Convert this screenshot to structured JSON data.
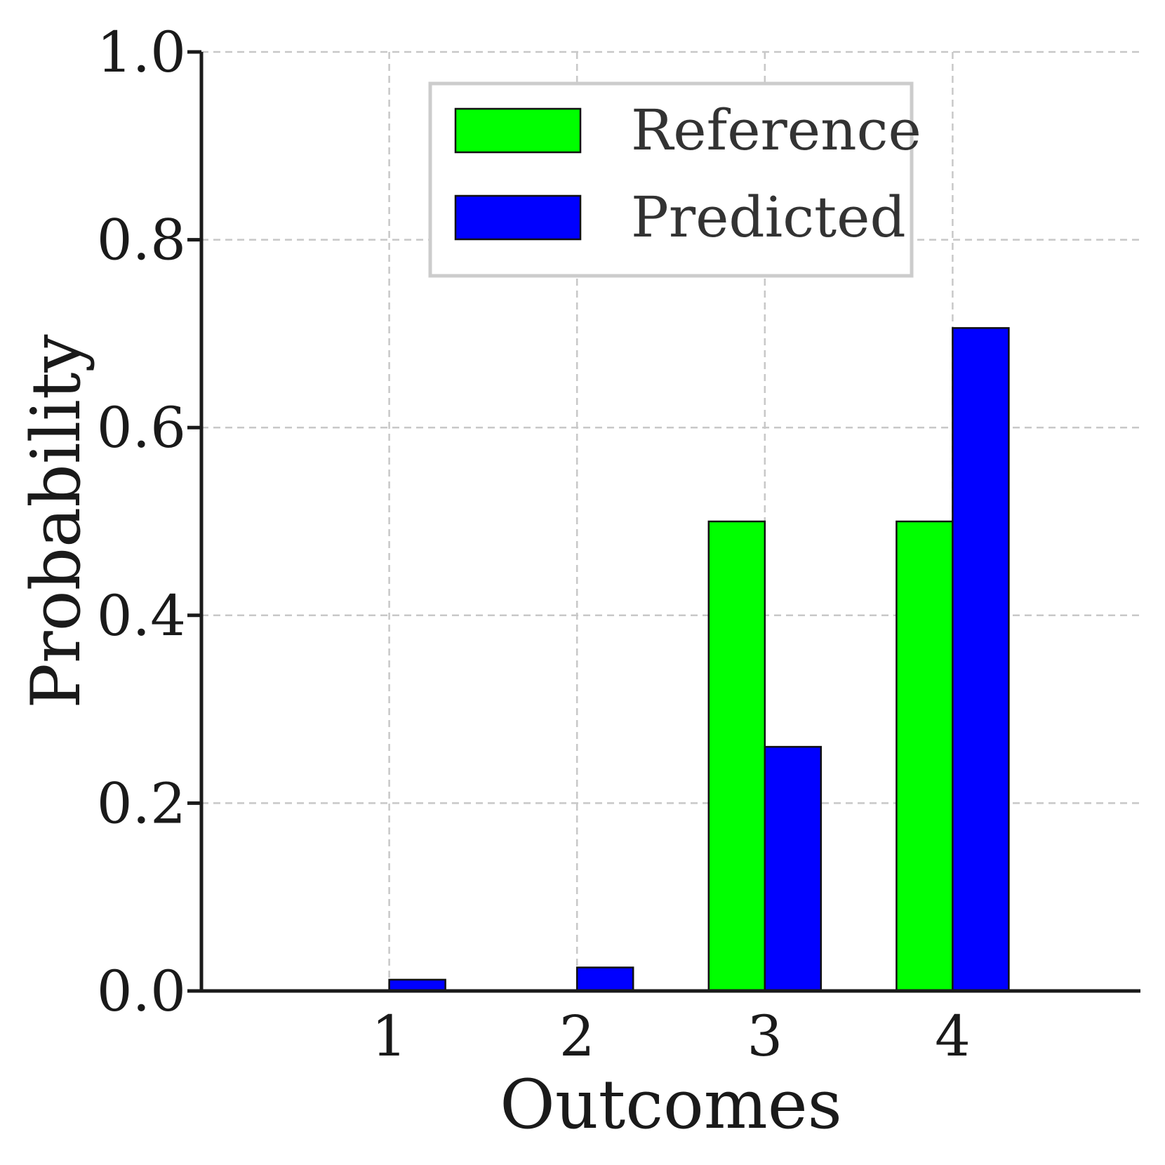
{
  "chart_data": {
    "type": "bar",
    "categories": [
      "1",
      "2",
      "3",
      "4"
    ],
    "series": [
      {
        "name": "Reference",
        "color": "#00ff00",
        "values": [
          0.0,
          0.0,
          0.5,
          0.5
        ]
      },
      {
        "name": "Predicted",
        "color": "#0000ff",
        "values": [
          0.012,
          0.025,
          0.26,
          0.706
        ]
      }
    ],
    "xlabel": "Outcomes",
    "ylabel": "Probability",
    "ylim": [
      0.0,
      1.0
    ],
    "xlim": [
      0,
      5
    ],
    "yticks": [
      "0.0",
      "0.2",
      "0.4",
      "0.6",
      "0.8",
      "1.0"
    ],
    "ytick_values": [
      0.0,
      0.2,
      0.4,
      0.6,
      0.8,
      1.0
    ],
    "xtick_values": [
      1,
      2,
      3,
      4
    ],
    "grid": true,
    "legend_position": "top-center"
  }
}
